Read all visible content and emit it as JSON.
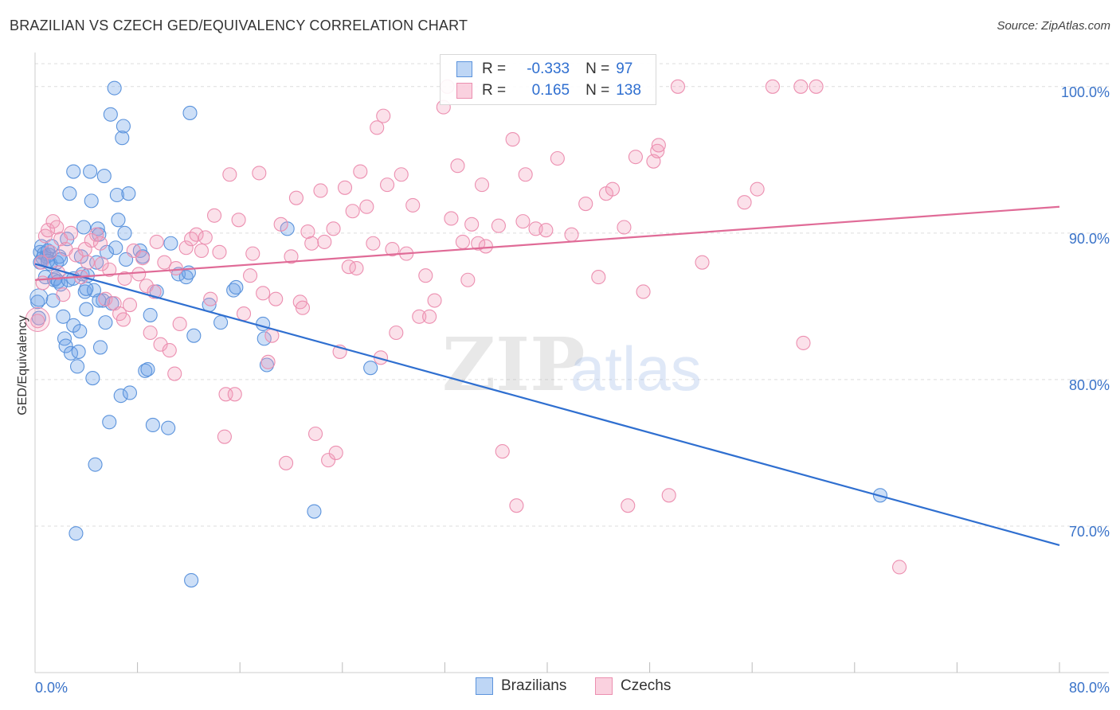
{
  "header": {
    "title": "BRAZILIAN VS CZECH GED/EQUIVALENCY CORRELATION CHART",
    "source": "Source: ZipAtlas.com"
  },
  "watermark": {
    "zip": "ZIP",
    "atlas": "atlas"
  },
  "legend": {
    "rows": [
      {
        "r_label": "R =",
        "r_value": "-0.333",
        "n_label": "N =",
        "n_value": "97",
        "color": "#6fa4e8"
      },
      {
        "r_label": "R =",
        "r_value": "0.165",
        "n_label": "N =",
        "n_value": "138",
        "color": "#f39ab8"
      }
    ]
  },
  "bottom_legend": {
    "series_1": "Brazilians",
    "series_2": "Czechs"
  },
  "colors": {
    "blue_fill": "rgba(111,164,232,0.35)",
    "blue_stroke": "#5b93dc",
    "blue_line": "#2f6fd0",
    "pink_fill": "rgba(243,154,184,0.30)",
    "pink_stroke": "#ec8fb0",
    "pink_line": "#e06b97",
    "grid": "#dddddd",
    "tick_label": "#3a73c9"
  },
  "chart_data": {
    "type": "scatter",
    "title": "BRAZILIAN VS CZECH GED/EQUIVALENCY CORRELATION CHART",
    "xlabel": "",
    "ylabel": "GED/Equivalency",
    "xlim": [
      0,
      80
    ],
    "ylim": [
      60,
      102
    ],
    "x_tick_labels": [
      "0.0%",
      "80.0%"
    ],
    "y_ticks": [
      70,
      80,
      90,
      100
    ],
    "y_tick_labels": [
      "70.0%",
      "80.0%",
      "90.0%",
      "100.0%"
    ],
    "grid": "horizontal dashed",
    "legend_placement": "top-center",
    "series": [
      {
        "name": "Brazilians",
        "r": -0.333,
        "n": 97,
        "trend": {
          "x": [
            0,
            80
          ],
          "y": [
            87.9,
            68.7
          ]
        },
        "points": [
          [
            0.2,
            85.3
          ],
          [
            0.3,
            84.2
          ],
          [
            0.4,
            88.7
          ],
          [
            0.5,
            89.1
          ],
          [
            0.6,
            88.3
          ],
          [
            0.7,
            88.6
          ],
          [
            0.8,
            87.0
          ],
          [
            0.9,
            88.4
          ],
          [
            1.0,
            88.8
          ],
          [
            1.1,
            88.5
          ],
          [
            1.2,
            87.9
          ],
          [
            1.3,
            89.1
          ],
          [
            1.4,
            85.4
          ],
          [
            1.5,
            86.8
          ],
          [
            1.6,
            86.9
          ],
          [
            1.7,
            88.0
          ],
          [
            1.8,
            86.7
          ],
          [
            1.9,
            88.4
          ],
          [
            2.0,
            86.5
          ],
          [
            2.2,
            84.3
          ],
          [
            2.3,
            82.8
          ],
          [
            2.4,
            82.3
          ],
          [
            2.5,
            89.6
          ],
          [
            2.6,
            86.8
          ],
          [
            2.7,
            92.7
          ],
          [
            2.8,
            81.8
          ],
          [
            3.0,
            94.2
          ],
          [
            3.0,
            83.7
          ],
          [
            3.2,
            69.5
          ],
          [
            3.3,
            80.9
          ],
          [
            3.4,
            81.9
          ],
          [
            3.5,
            83.3
          ],
          [
            3.6,
            88.4
          ],
          [
            3.7,
            87.2
          ],
          [
            3.8,
            90.4
          ],
          [
            3.9,
            86.0
          ],
          [
            4.0,
            84.8
          ],
          [
            4.1,
            87.1
          ],
          [
            4.3,
            94.2
          ],
          [
            4.4,
            92.2
          ],
          [
            4.5,
            80.1
          ],
          [
            4.6,
            86.1
          ],
          [
            4.7,
            74.2
          ],
          [
            4.8,
            88.0
          ],
          [
            4.9,
            90.3
          ],
          [
            5.0,
            89.9
          ],
          [
            5.1,
            82.2
          ],
          [
            5.3,
            85.4
          ],
          [
            5.4,
            93.9
          ],
          [
            5.5,
            83.9
          ],
          [
            5.6,
            88.7
          ],
          [
            5.8,
            77.1
          ],
          [
            5.9,
            98.1
          ],
          [
            6.0,
            85.2
          ],
          [
            6.2,
            99.9
          ],
          [
            6.3,
            89.0
          ],
          [
            6.4,
            92.6
          ],
          [
            6.5,
            90.9
          ],
          [
            6.7,
            78.9
          ],
          [
            6.8,
            96.5
          ],
          [
            6.9,
            97.3
          ],
          [
            7.0,
            90.0
          ],
          [
            7.1,
            88.2
          ],
          [
            7.3,
            92.7
          ],
          [
            7.4,
            79.1
          ],
          [
            8.2,
            88.8
          ],
          [
            8.4,
            88.4
          ],
          [
            8.6,
            80.6
          ],
          [
            8.8,
            80.7
          ],
          [
            9.0,
            84.4
          ],
          [
            9.2,
            76.9
          ],
          [
            9.5,
            86.0
          ],
          [
            10.4,
            76.7
          ],
          [
            10.6,
            89.3
          ],
          [
            11.2,
            87.2
          ],
          [
            11.8,
            87.0
          ],
          [
            12.0,
            87.3
          ],
          [
            12.1,
            98.2
          ],
          [
            12.2,
            66.3
          ],
          [
            12.4,
            83.0
          ],
          [
            13.6,
            85.1
          ],
          [
            14.5,
            83.9
          ],
          [
            15.5,
            86.1
          ],
          [
            15.7,
            86.3
          ],
          [
            17.8,
            83.8
          ],
          [
            17.9,
            82.8
          ],
          [
            18.1,
            81.0
          ],
          [
            19.7,
            90.3
          ],
          [
            21.8,
            71.0
          ],
          [
            26.2,
            80.8
          ],
          [
            66.0,
            72.1
          ],
          [
            0.4,
            88.0
          ],
          [
            1.0,
            88.1
          ],
          [
            2.0,
            88.2
          ],
          [
            3.0,
            86.9
          ],
          [
            4.0,
            86.2
          ],
          [
            5.0,
            85.4
          ]
        ]
      },
      {
        "name": "Czechs",
        "r": 0.165,
        "n": 138,
        "trend": {
          "x": [
            0,
            80
          ],
          "y": [
            86.8,
            91.8
          ]
        },
        "points": [
          [
            0.2,
            84.0
          ],
          [
            0.5,
            88.0
          ],
          [
            0.8,
            89.8
          ],
          [
            1.0,
            90.2
          ],
          [
            1.2,
            88.7
          ],
          [
            1.4,
            90.8
          ],
          [
            1.7,
            90.4
          ],
          [
            2.0,
            89.6
          ],
          [
            2.4,
            88.9
          ],
          [
            2.8,
            90.0
          ],
          [
            3.2,
            88.5
          ],
          [
            3.6,
            87.0
          ],
          [
            4.1,
            88.0
          ],
          [
            4.4,
            89.5
          ],
          [
            4.8,
            89.9
          ],
          [
            5.1,
            89.3
          ],
          [
            5.5,
            85.5
          ],
          [
            5.8,
            87.5
          ],
          [
            6.2,
            85.2
          ],
          [
            6.6,
            84.5
          ],
          [
            6.9,
            84.1
          ],
          [
            7.4,
            85.1
          ],
          [
            7.7,
            88.8
          ],
          [
            8.1,
            87.2
          ],
          [
            8.4,
            88.3
          ],
          [
            8.7,
            86.4
          ],
          [
            9.0,
            83.2
          ],
          [
            9.5,
            89.4
          ],
          [
            9.8,
            82.4
          ],
          [
            10.1,
            88.0
          ],
          [
            10.5,
            82.0
          ],
          [
            10.9,
            80.4
          ],
          [
            11.3,
            83.8
          ],
          [
            11.8,
            89.0
          ],
          [
            12.2,
            89.6
          ],
          [
            12.6,
            89.9
          ],
          [
            13.0,
            88.8
          ],
          [
            13.3,
            89.7
          ],
          [
            13.7,
            85.5
          ],
          [
            14.0,
            91.2
          ],
          [
            14.4,
            88.7
          ],
          [
            14.9,
            79.0
          ],
          [
            14.8,
            76.1
          ],
          [
            15.2,
            94.0
          ],
          [
            15.6,
            79.0
          ],
          [
            15.9,
            90.9
          ],
          [
            16.3,
            84.5
          ],
          [
            16.8,
            87.1
          ],
          [
            17.0,
            88.6
          ],
          [
            17.5,
            94.1
          ],
          [
            17.8,
            85.9
          ],
          [
            18.2,
            81.2
          ],
          [
            18.5,
            83.0
          ],
          [
            18.8,
            85.5
          ],
          [
            19.2,
            90.6
          ],
          [
            19.6,
            74.3
          ],
          [
            20.0,
            88.4
          ],
          [
            20.4,
            92.4
          ],
          [
            20.7,
            85.3
          ],
          [
            20.9,
            84.9
          ],
          [
            21.3,
            90.1
          ],
          [
            21.6,
            89.3
          ],
          [
            21.9,
            76.3
          ],
          [
            22.3,
            92.9
          ],
          [
            22.6,
            89.4
          ],
          [
            22.9,
            74.5
          ],
          [
            23.3,
            90.3
          ],
          [
            23.5,
            75.0
          ],
          [
            23.8,
            81.9
          ],
          [
            24.2,
            93.1
          ],
          [
            24.5,
            87.7
          ],
          [
            24.8,
            91.5
          ],
          [
            25.1,
            87.6
          ],
          [
            25.4,
            94.2
          ],
          [
            25.9,
            91.8
          ],
          [
            26.4,
            89.3
          ],
          [
            26.7,
            97.2
          ],
          [
            27.0,
            81.5
          ],
          [
            27.2,
            98.0
          ],
          [
            27.5,
            93.3
          ],
          [
            27.9,
            88.9
          ],
          [
            28.2,
            83.2
          ],
          [
            28.6,
            94.0
          ],
          [
            29.0,
            88.6
          ],
          [
            29.5,
            91.9
          ],
          [
            30.0,
            84.3
          ],
          [
            30.5,
            87.1
          ],
          [
            30.8,
            84.3
          ],
          [
            31.2,
            85.4
          ],
          [
            31.9,
            98.6
          ],
          [
            32.2,
            100.0
          ],
          [
            32.5,
            91.0
          ],
          [
            33.0,
            94.6
          ],
          [
            33.4,
            89.4
          ],
          [
            33.8,
            86.8
          ],
          [
            34.1,
            90.6
          ],
          [
            34.6,
            89.3
          ],
          [
            34.9,
            93.3
          ],
          [
            35.2,
            89.1
          ],
          [
            36.5,
            75.1
          ],
          [
            36.2,
            90.5
          ],
          [
            37.3,
            96.4
          ],
          [
            37.6,
            71.4
          ],
          [
            38.1,
            90.8
          ],
          [
            38.3,
            94.0
          ],
          [
            39.1,
            90.3
          ],
          [
            39.9,
            90.2
          ],
          [
            40.8,
            95.1
          ],
          [
            41.9,
            89.9
          ],
          [
            43.0,
            92.0
          ],
          [
            44.0,
            87.0
          ],
          [
            44.6,
            92.7
          ],
          [
            45.1,
            93.0
          ],
          [
            46.0,
            90.4
          ],
          [
            46.3,
            71.4
          ],
          [
            46.9,
            95.2
          ],
          [
            47.5,
            86.0
          ],
          [
            48.3,
            94.9
          ],
          [
            48.6,
            95.6
          ],
          [
            48.7,
            96.0
          ],
          [
            49.5,
            72.1
          ],
          [
            50.2,
            100.0
          ],
          [
            52.1,
            88.0
          ],
          [
            55.4,
            92.1
          ],
          [
            56.4,
            93.0
          ],
          [
            57.6,
            100.0
          ],
          [
            59.8,
            100.0
          ],
          [
            60.0,
            82.5
          ],
          [
            61.0,
            100.0
          ],
          [
            67.5,
            67.2
          ],
          [
            0.6,
            86.6
          ],
          [
            1.8,
            87.3
          ],
          [
            2.2,
            85.8
          ],
          [
            3.9,
            88.9
          ],
          [
            5.2,
            87.9
          ],
          [
            7.0,
            86.9
          ],
          [
            9.3,
            86.0
          ],
          [
            11.0,
            87.6
          ]
        ]
      }
    ]
  }
}
